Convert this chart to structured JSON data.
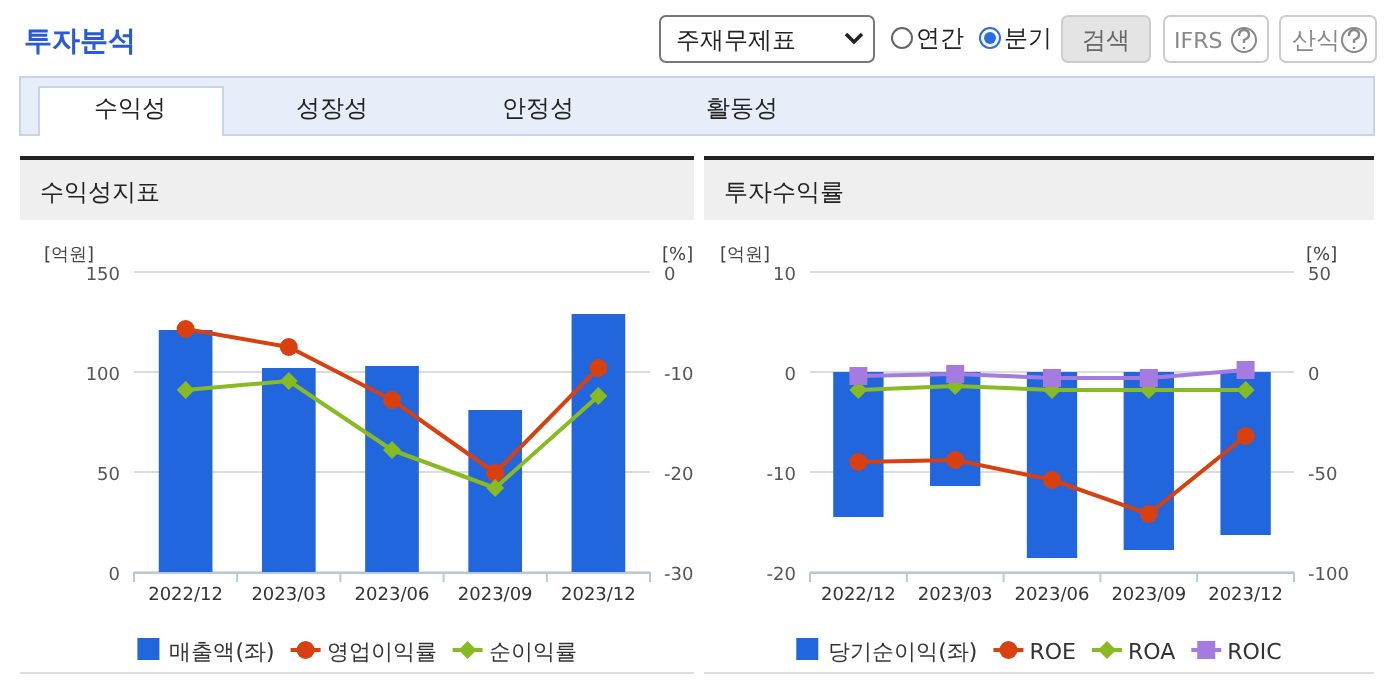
{
  "chart_data": [
    {
      "type": "other",
      "title": "투자분석",
      "annotations": [
        "주재무제표",
        "연간",
        "분기",
        "검색",
        "IFRS",
        "산식",
        "수익성",
        "성장성",
        "안정성",
        "활동성"
      ]
    },
    {
      "type": "bar",
      "title": "수익성지표",
      "ylabel": "[억원]",
      "y2label": "[%]",
      "categories": [
        "2022/12",
        "2023/03",
        "2023/06",
        "2023/09",
        "2023/12"
      ],
      "ylim": [
        0,
        150
      ],
      "yticks": [
        0,
        50,
        100,
        150
      ],
      "y2lim": [
        -30,
        0
      ],
      "y2ticks": [
        -30,
        -20,
        -10,
        0
      ],
      "grid": "y",
      "legend": "bottom",
      "series": [
        {
          "name": "매출액(좌)",
          "type": "bar",
          "color": "#2266dd",
          "values": [
            121,
            102,
            103,
            81,
            129
          ]
        },
        {
          "name": "영업이익률",
          "type": "line",
          "axis": "y2",
          "color": "#d9400f",
          "marker": "circle",
          "values": [
            -5.7,
            -7.5,
            -12.8,
            -20.1,
            -9.6
          ]
        },
        {
          "name": "순이익률",
          "type": "line",
          "axis": "y2",
          "color": "#88bb22",
          "marker": "diamond",
          "values": [
            -11.8,
            -10.9,
            -17.8,
            -21.6,
            -12.4
          ]
        }
      ]
    },
    {
      "type": "bar",
      "title": "투자수익률",
      "ylabel": "[억원]",
      "y2label": "[%]",
      "categories": [
        "2022/12",
        "2023/03",
        "2023/06",
        "2023/09",
        "2023/12"
      ],
      "ylim": [
        -20,
        10
      ],
      "yticks": [
        -20,
        -10,
        0,
        10
      ],
      "y2lim": [
        -100,
        50
      ],
      "y2ticks": [
        -100,
        -50,
        0,
        50
      ],
      "grid": "y",
      "legend": "bottom",
      "series": [
        {
          "name": "당기순이익(좌)",
          "type": "bar",
          "color": "#2266dd",
          "values": [
            -14.5,
            -11.4,
            -18.6,
            -17.8,
            -16.3
          ]
        },
        {
          "name": "ROE",
          "type": "line",
          "axis": "y2",
          "color": "#d9400f",
          "marker": "circle",
          "values": [
            -45,
            -44,
            -54,
            -71,
            -32
          ]
        },
        {
          "name": "ROA",
          "type": "line",
          "axis": "y2",
          "color": "#88bb22",
          "marker": "diamond",
          "values": [
            -9,
            -7,
            -9,
            -9,
            -9
          ]
        },
        {
          "name": "ROIC",
          "type": "line",
          "axis": "y2",
          "color": "#a67be0",
          "marker": "square",
          "values": [
            -2,
            -1,
            -3,
            -3,
            1
          ]
        }
      ]
    }
  ]
}
